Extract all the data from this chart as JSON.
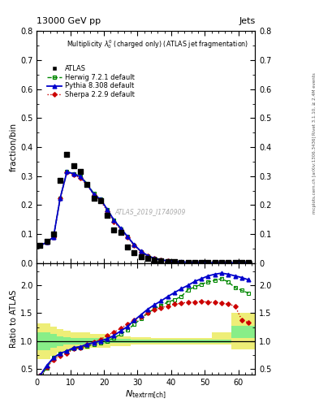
{
  "title_top": "13000 GeV pp",
  "title_right": "Jets",
  "main_title": "Multiplicity $\\lambda_0^0$ (charged only) (ATLAS jet fragmentation)",
  "watermark": "ATLAS_2019_I1740909",
  "right_label_top": "Rivet 3.1.10, ≥ 2.4M events",
  "right_label_bot": "mcplots.cern.ch [arXiv:1306.3436]",
  "ylabel_main": "fraction/bin",
  "ylabel_ratio": "Ratio to ATLAS",
  "xlabel": "$N_{\\rm{textrm[ch]}}$",
  "xlim": [
    0,
    65
  ],
  "ylim_main": [
    0.0,
    0.8
  ],
  "ylim_ratio": [
    0.4,
    2.4
  ],
  "atlas_x": [
    1,
    3,
    5,
    7,
    9,
    11,
    13,
    15,
    17,
    19,
    21,
    23,
    25,
    27,
    29,
    31,
    33,
    35,
    37,
    39,
    41,
    43,
    45,
    47,
    49,
    51,
    53,
    55,
    57,
    59,
    61,
    63
  ],
  "atlas_y": [
    0.06,
    0.075,
    0.1,
    0.285,
    0.375,
    0.335,
    0.315,
    0.27,
    0.225,
    0.215,
    0.165,
    0.115,
    0.105,
    0.055,
    0.035,
    0.022,
    0.015,
    0.01,
    0.007,
    0.005,
    0.004,
    0.003,
    0.002,
    0.002,
    0.001,
    0.001,
    0.001,
    0.001,
    0.001,
    0.001,
    0.001,
    0.001
  ],
  "herwig_x": [
    1,
    3,
    5,
    7,
    9,
    11,
    13,
    15,
    17,
    19,
    21,
    23,
    25,
    27,
    29,
    31,
    33,
    35,
    37,
    39,
    41,
    43,
    45,
    47,
    49,
    51,
    53,
    55,
    57,
    59,
    61,
    63
  ],
  "herwig_y": [
    0.06,
    0.072,
    0.09,
    0.225,
    0.315,
    0.308,
    0.3,
    0.275,
    0.24,
    0.22,
    0.185,
    0.148,
    0.118,
    0.092,
    0.062,
    0.04,
    0.025,
    0.016,
    0.01,
    0.007,
    0.005,
    0.003,
    0.002,
    0.002,
    0.001,
    0.001,
    0.001,
    0.001,
    0.001,
    0.001,
    0.001,
    0.001
  ],
  "pythia_x": [
    1,
    3,
    5,
    7,
    9,
    11,
    13,
    15,
    17,
    19,
    21,
    23,
    25,
    27,
    29,
    31,
    33,
    35,
    37,
    39,
    41,
    43,
    45,
    47,
    49,
    51,
    53,
    55,
    57,
    59,
    61,
    63
  ],
  "pythia_y": [
    0.06,
    0.072,
    0.09,
    0.225,
    0.315,
    0.308,
    0.298,
    0.272,
    0.237,
    0.22,
    0.185,
    0.148,
    0.12,
    0.092,
    0.063,
    0.041,
    0.026,
    0.016,
    0.011,
    0.008,
    0.005,
    0.004,
    0.003,
    0.002,
    0.002,
    0.001,
    0.001,
    0.001,
    0.001,
    0.001,
    0.001,
    0.001
  ],
  "sherpa_x": [
    1,
    3,
    5,
    7,
    9,
    11,
    13,
    15,
    17,
    19,
    21,
    23,
    25,
    27,
    29,
    31,
    33,
    35,
    37,
    39,
    41,
    43,
    45,
    47,
    49,
    51,
    53,
    55,
    57,
    59,
    61,
    63
  ],
  "sherpa_y": [
    0.06,
    0.072,
    0.09,
    0.225,
    0.312,
    0.305,
    0.293,
    0.27,
    0.235,
    0.215,
    0.18,
    0.143,
    0.115,
    0.09,
    0.06,
    0.04,
    0.025,
    0.015,
    0.01,
    0.007,
    0.005,
    0.003,
    0.002,
    0.002,
    0.001,
    0.001,
    0.001,
    0.001,
    0.001,
    0.001,
    0.001,
    0.001
  ],
  "herwig_ratio": [
    0.35,
    0.52,
    0.7,
    0.77,
    0.8,
    0.86,
    0.88,
    0.91,
    0.94,
    0.97,
    1.0,
    1.06,
    1.12,
    1.2,
    1.3,
    1.4,
    1.5,
    1.58,
    1.64,
    1.7,
    1.74,
    1.8,
    1.92,
    1.97,
    2.02,
    2.06,
    2.09,
    2.12,
    2.06,
    1.96,
    1.91,
    1.86
  ],
  "pythia_ratio": [
    0.38,
    0.56,
    0.7,
    0.78,
    0.82,
    0.88,
    0.9,
    0.94,
    0.97,
    1.0,
    1.04,
    1.1,
    1.18,
    1.26,
    1.37,
    1.47,
    1.57,
    1.65,
    1.72,
    1.8,
    1.87,
    1.94,
    2.0,
    2.07,
    2.12,
    2.17,
    2.2,
    2.22,
    2.2,
    2.17,
    2.14,
    2.1
  ],
  "sherpa_ratio": [
    0.38,
    0.53,
    0.66,
    0.74,
    0.78,
    0.86,
    0.88,
    0.93,
    0.98,
    1.03,
    1.1,
    1.16,
    1.23,
    1.3,
    1.38,
    1.43,
    1.5,
    1.56,
    1.6,
    1.63,
    1.66,
    1.68,
    1.7,
    1.7,
    1.71,
    1.7,
    1.7,
    1.68,
    1.66,
    1.63,
    1.38,
    1.33
  ],
  "band_x_edges": [
    0,
    2,
    4,
    6,
    8,
    10,
    16,
    22,
    28,
    34,
    40,
    46,
    52,
    58,
    65
  ],
  "band_outer_lo": [
    0.68,
    0.68,
    0.74,
    0.79,
    0.82,
    0.85,
    0.88,
    0.91,
    0.93,
    0.94,
    0.94,
    0.94,
    0.94,
    0.85
  ],
  "band_outer_hi": [
    1.32,
    1.32,
    1.26,
    1.21,
    1.18,
    1.15,
    1.12,
    1.09,
    1.07,
    1.06,
    1.06,
    1.06,
    1.15,
    1.5
  ],
  "band_inner_lo": [
    0.84,
    0.84,
    0.88,
    0.91,
    0.93,
    0.94,
    0.95,
    0.96,
    0.97,
    0.97,
    0.97,
    0.97,
    0.97,
    1.05
  ],
  "band_inner_hi": [
    1.16,
    1.16,
    1.12,
    1.09,
    1.07,
    1.06,
    1.05,
    1.04,
    1.03,
    1.03,
    1.03,
    1.03,
    1.03,
    1.28
  ],
  "color_atlas": "#000000",
  "color_herwig": "#008800",
  "color_pythia": "#0000CC",
  "color_sherpa": "#CC0000",
  "band_inner_color": "#88EE88",
  "band_outer_color": "#EEEE77",
  "xticks": [
    0,
    10,
    20,
    30,
    40,
    50,
    60
  ],
  "yticks_main": [
    0.0,
    0.1,
    0.2,
    0.3,
    0.4,
    0.5,
    0.6,
    0.7,
    0.8
  ],
  "yticks_ratio": [
    0.5,
    1.0,
    1.5,
    2.0
  ]
}
